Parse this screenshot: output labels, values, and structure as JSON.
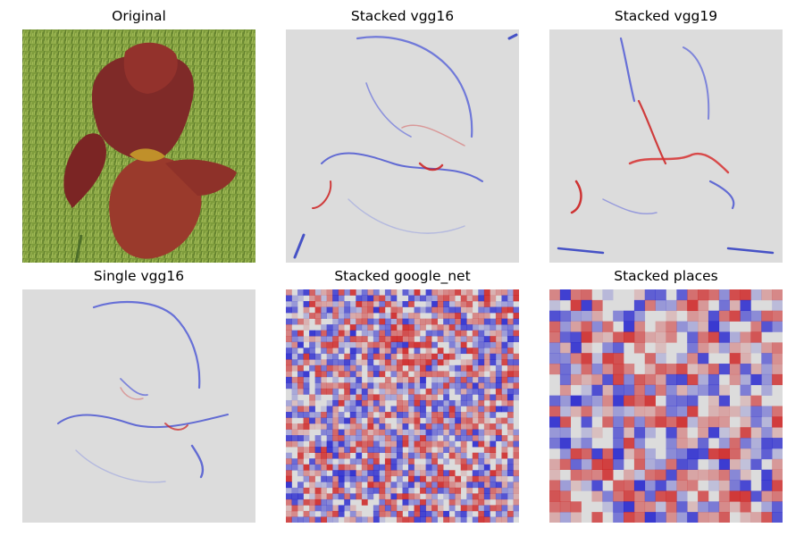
{
  "panels": [
    {
      "title": "Original",
      "kind": "photo",
      "subject": "red iris flower on green grass"
    },
    {
      "title": "Stacked vgg16",
      "kind": "saliency-smooth"
    },
    {
      "title": "Stacked vgg19",
      "kind": "saliency-smooth"
    },
    {
      "title": "Single vgg16",
      "kind": "saliency-smooth"
    },
    {
      "title": "Stacked google_net",
      "kind": "saliency-grid-fine"
    },
    {
      "title": "Stacked places",
      "kind": "saliency-grid-coarse"
    }
  ],
  "colors": {
    "neutral": "#dcdcdc",
    "positive": "#cc0000",
    "negative": "#0000cc",
    "grass": "#7a9a3a",
    "petal": "#8a2b26"
  }
}
